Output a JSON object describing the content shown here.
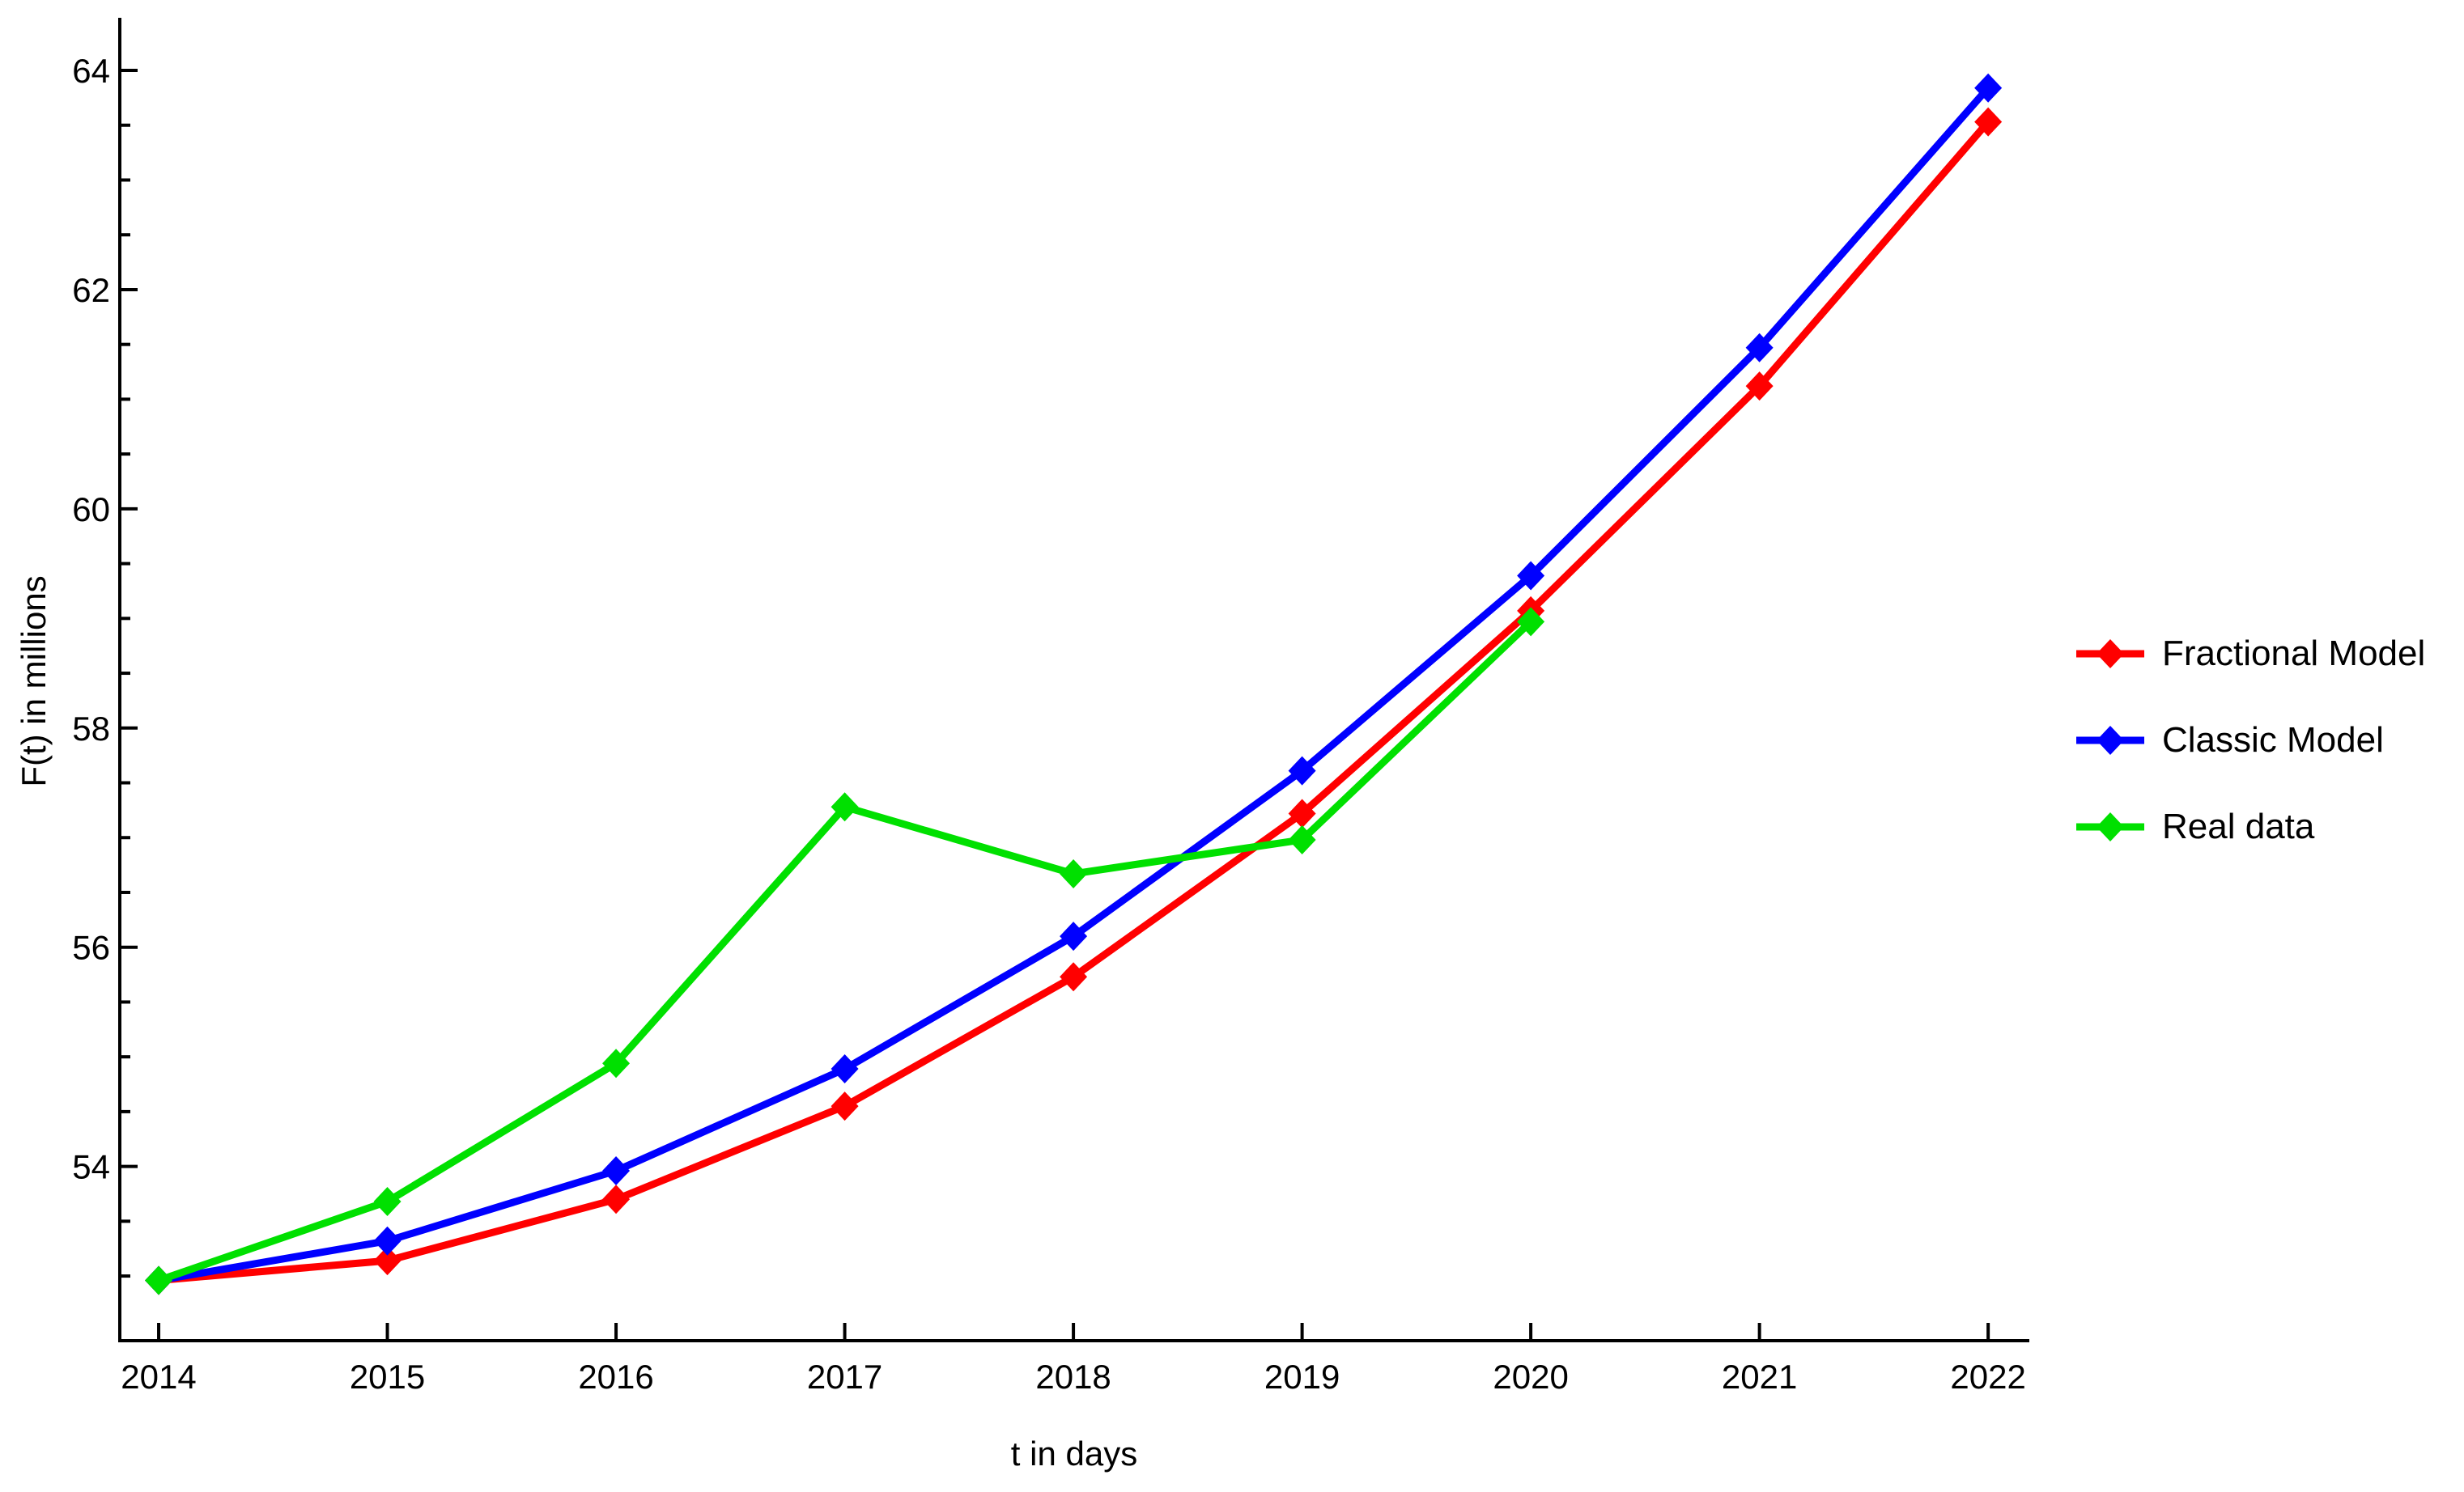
{
  "chart_data": {
    "type": "line",
    "title": "",
    "xlabel": "t in days",
    "ylabel": "F(t) in millions",
    "xlim": [
      2013.83,
      2022.18
    ],
    "ylim": [
      52.41,
      64.48
    ],
    "xticks": [
      2014,
      2015,
      2016,
      2017,
      2018,
      2019,
      2020,
      2021,
      2022
    ],
    "yticks_major": [
      54,
      56,
      58,
      60,
      62,
      64
    ],
    "ytick_minor_step": 0.5,
    "grid": false,
    "legend_position": "right-outside",
    "marker": "diamond",
    "series": [
      {
        "name": "Fractional Model",
        "color": "#FF0000",
        "x": [
          2014,
          2015,
          2016,
          2017,
          2018,
          2019,
          2020,
          2021,
          2022
        ],
        "values": [
          52.96,
          53.14,
          53.7,
          54.55,
          55.73,
          57.22,
          59.07,
          61.12,
          63.53
        ]
      },
      {
        "name": "Classic Model",
        "color": "#0000FF",
        "x": [
          2014,
          2015,
          2016,
          2017,
          2018,
          2019,
          2020,
          2021,
          2022
        ],
        "values": [
          52.96,
          53.32,
          53.96,
          54.89,
          56.1,
          57.61,
          59.39,
          61.47,
          63.84
        ]
      },
      {
        "name": "Real data",
        "color": "#00E000",
        "x": [
          2014,
          2015,
          2016,
          2017,
          2018,
          2019,
          2020
        ],
        "values": [
          52.96,
          53.68,
          54.94,
          57.28,
          56.67,
          56.98,
          58.97
        ]
      }
    ]
  }
}
